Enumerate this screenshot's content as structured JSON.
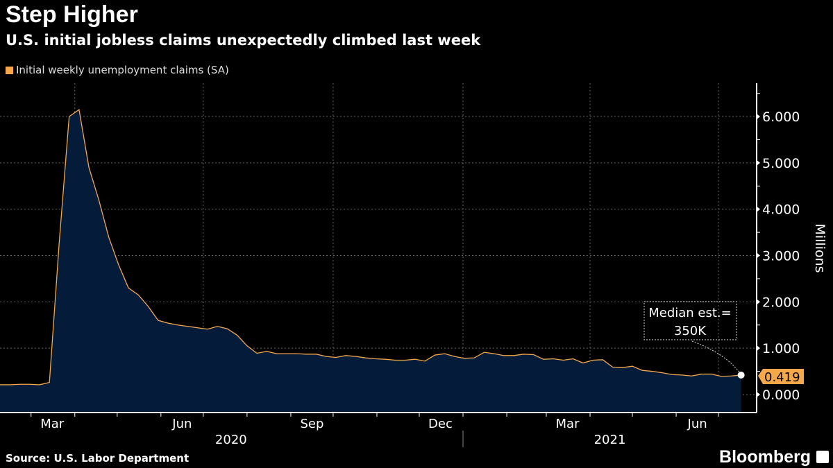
{
  "header": {
    "title": "Step Higher",
    "subtitle": "U.S. initial jobless claims unexpectedly climbed last week"
  },
  "footer": {
    "source": "Source: U.S. Labor Department",
    "brand": "Bloomberg"
  },
  "chart_data": {
    "type": "area",
    "title": "Step Higher",
    "subtitle": "U.S. initial jobless claims unexpectedly climbed last week",
    "ylabel": "Millions",
    "ylim": [
      -0.39,
      6.72
    ],
    "xlim": [
      "2020-02-08",
      "2021-07-28"
    ],
    "yticks": [
      "0.000",
      "1.000",
      "2.000",
      "3.000",
      "4.000",
      "5.000",
      "6.000"
    ],
    "xtick_labels": [
      {
        "label": "Mar",
        "date": "2020-03-16"
      },
      {
        "label": "Jun",
        "date": "2020-06-16"
      },
      {
        "label": "Sep",
        "date": "2020-09-16"
      },
      {
        "label": "Dec",
        "date": "2020-12-16"
      },
      {
        "label": "Mar",
        "date": "2021-03-16"
      },
      {
        "label": "Jun",
        "date": "2021-06-16"
      }
    ],
    "year_labels": [
      "2020",
      "2021"
    ],
    "grid": true,
    "legend_position": "top-left",
    "colors": {
      "line": "#f5a84a",
      "fill": "#041c3a",
      "grid": "#666666",
      "badge": "#f5a84a"
    },
    "series": [
      {
        "name": "Initial weekly unemployment claims (SA)",
        "x": [
          "2020-02-08",
          "2020-02-15",
          "2020-02-22",
          "2020-02-29",
          "2020-03-07",
          "2020-03-14",
          "2020-03-21",
          "2020-03-28",
          "2020-04-04",
          "2020-04-11",
          "2020-04-18",
          "2020-04-25",
          "2020-05-02",
          "2020-05-09",
          "2020-05-16",
          "2020-05-23",
          "2020-05-30",
          "2020-06-06",
          "2020-06-13",
          "2020-06-20",
          "2020-06-27",
          "2020-07-04",
          "2020-07-11",
          "2020-07-18",
          "2020-07-25",
          "2020-08-01",
          "2020-08-08",
          "2020-08-15",
          "2020-08-22",
          "2020-08-29",
          "2020-09-05",
          "2020-09-12",
          "2020-09-19",
          "2020-09-26",
          "2020-10-03",
          "2020-10-10",
          "2020-10-17",
          "2020-10-24",
          "2020-10-31",
          "2020-11-07",
          "2020-11-14",
          "2020-11-21",
          "2020-11-28",
          "2020-12-05",
          "2020-12-12",
          "2020-12-19",
          "2020-12-26",
          "2021-01-02",
          "2021-01-09",
          "2021-01-16",
          "2021-01-23",
          "2021-01-30",
          "2021-02-06",
          "2021-02-13",
          "2021-02-20",
          "2021-02-27",
          "2021-03-06",
          "2021-03-13",
          "2021-03-20",
          "2021-03-27",
          "2021-04-03",
          "2021-04-10",
          "2021-04-17",
          "2021-04-24",
          "2021-05-01",
          "2021-05-08",
          "2021-05-15",
          "2021-05-22",
          "2021-05-29",
          "2021-06-05",
          "2021-06-12",
          "2021-06-19",
          "2021-06-26",
          "2021-07-03",
          "2021-07-10",
          "2021-07-17"
        ],
        "values": [
          0.21,
          0.21,
          0.22,
          0.22,
          0.21,
          0.26,
          3.3,
          6.0,
          6.15,
          4.9,
          4.2,
          3.4,
          2.8,
          2.3,
          2.15,
          1.9,
          1.6,
          1.54,
          1.5,
          1.47,
          1.44,
          1.41,
          1.47,
          1.42,
          1.28,
          1.05,
          0.89,
          0.93,
          0.88,
          0.88,
          0.88,
          0.87,
          0.87,
          0.82,
          0.8,
          0.84,
          0.82,
          0.79,
          0.77,
          0.76,
          0.74,
          0.74,
          0.76,
          0.72,
          0.85,
          0.88,
          0.82,
          0.78,
          0.79,
          0.91,
          0.88,
          0.84,
          0.84,
          0.87,
          0.86,
          0.76,
          0.77,
          0.74,
          0.77,
          0.68,
          0.74,
          0.75,
          0.59,
          0.58,
          0.61,
          0.52,
          0.5,
          0.47,
          0.43,
          0.42,
          0.4,
          0.44,
          0.44,
          0.39,
          0.4,
          0.419
        ]
      }
    ],
    "last_value_label": "0.419",
    "annotation": {
      "line1": "Median est.=",
      "line2": "350K"
    }
  }
}
